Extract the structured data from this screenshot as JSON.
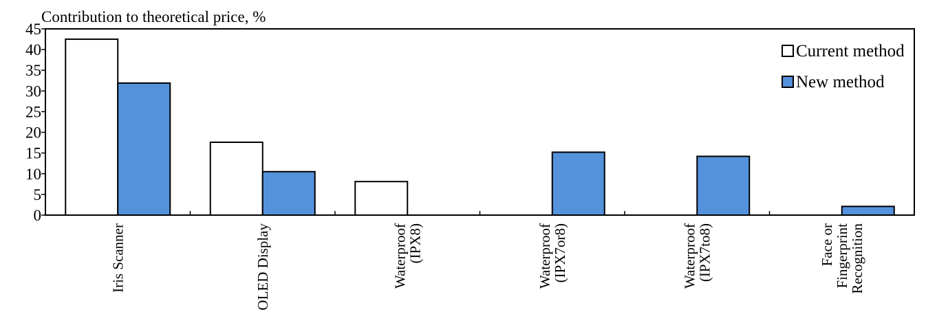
{
  "chart_data": {
    "type": "bar",
    "title": "",
    "ylabel": "Contribution to theoretical price, %",
    "xlabel": "",
    "ylim": [
      0,
      45
    ],
    "ytick_step": 5,
    "grid": false,
    "legend_position": "top-right",
    "categories": [
      [
        "Iris Scanner"
      ],
      [
        "OLED Display"
      ],
      [
        "Waterproof",
        "(IPX8)"
      ],
      [
        "Waterproof",
        "(IPX7or8)"
      ],
      [
        "Waterproof",
        "(IPX7to8)"
      ],
      [
        "Face or",
        "Fingerprint",
        "Recognition"
      ]
    ],
    "series": [
      {
        "name": "Current method",
        "values": [
          42.5,
          17.6,
          8.1,
          0,
          0,
          0
        ],
        "color": "#ffffff"
      },
      {
        "name": "New method",
        "values": [
          31.9,
          10.5,
          0,
          15.2,
          14.2,
          2.1
        ],
        "color": "#5592dc"
      }
    ]
  }
}
